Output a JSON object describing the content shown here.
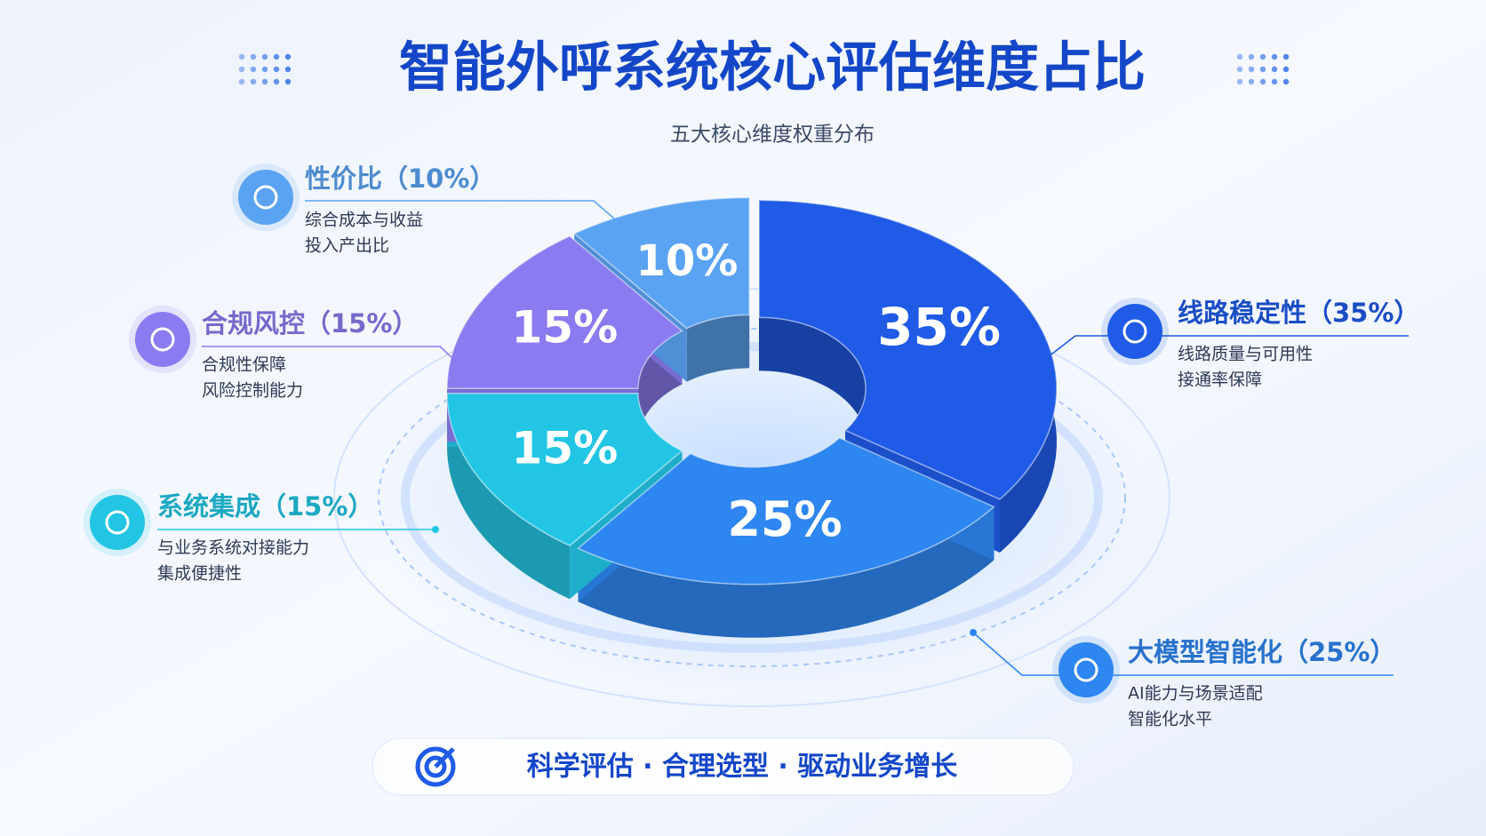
{
  "chart_data": {
    "type": "pie",
    "title": "智能外呼系统核心评估维度占比",
    "subtitle": "五大核心维度权重分布",
    "categories": [
      "线路稳定性（35%）",
      "大模型智能化（25%）",
      "系统集成（15%）",
      "合规风控（15%）",
      "性价比（10%）"
    ],
    "values": [
      35,
      25,
      15,
      15,
      10
    ],
    "value_labels": [
      "35%",
      "25%",
      "15%",
      "15%",
      "10%"
    ],
    "descriptions": [
      [
        "线路质量与可用性",
        "接通率保障"
      ],
      [
        "AI能力与场景适配",
        "智能化水平"
      ],
      [
        "与业务系统对接能力",
        "集成便捷性"
      ],
      [
        "合规性保障",
        "风险控制能力"
      ],
      [
        "综合成本与收益",
        "投入产出比"
      ]
    ],
    "colors": [
      "#1f5be6",
      "#2e86f0",
      "#22c6e4",
      "#8a7bf0",
      "#5aa3f2"
    ],
    "footer": "科学评估 · 合理选型 · 驱动业务增长"
  }
}
